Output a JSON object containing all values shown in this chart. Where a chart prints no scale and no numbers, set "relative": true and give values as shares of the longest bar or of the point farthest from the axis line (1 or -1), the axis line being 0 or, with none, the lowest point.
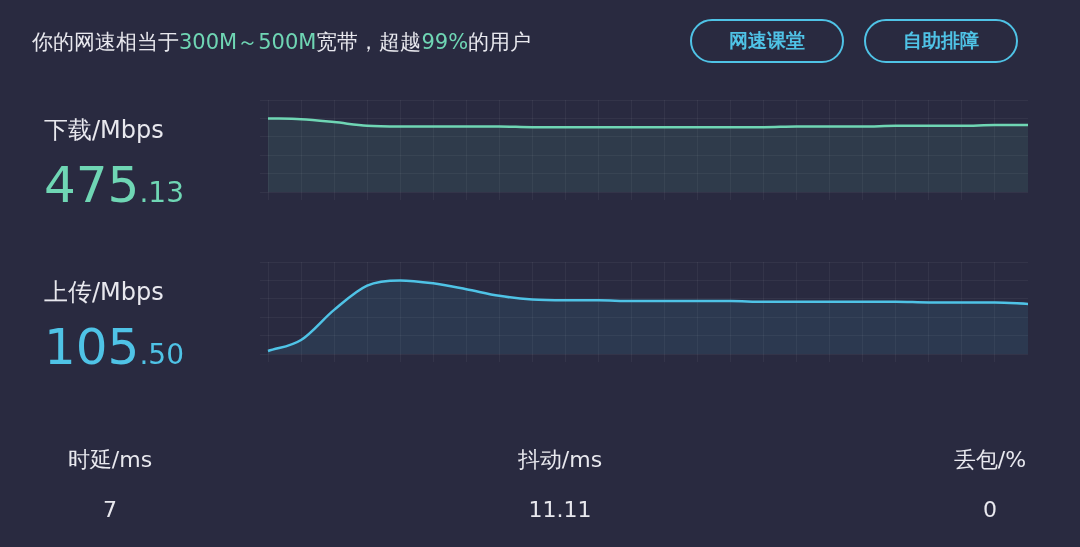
{
  "chart_data": [
    {
      "type": "other",
      "title": "你的网速相当于300M～500M宽带，超越99%的用户",
      "annotations": [
        "网速课堂",
        "自助排障"
      ]
    },
    {
      "type": "area",
      "title": "下载/Mbps",
      "annotations": [
        "475.13"
      ],
      "relative": true,
      "grid": true,
      "categories": [
        null,
        null,
        null,
        null,
        null,
        null,
        null,
        null,
        null,
        null,
        null,
        null,
        null,
        null,
        null,
        null,
        null,
        null,
        null,
        null,
        null,
        null,
        null,
        null
      ],
      "series": [
        {
          "color": "#6fd6b4",
          "values": [
            1,
            0.99,
            0.95,
            0.9,
            0.89,
            0.89,
            0.89,
            0.89,
            0.88,
            0.88,
            0.88,
            0.88,
            0.88,
            0.88,
            0.88,
            0.88,
            0.89,
            0.89,
            0.89,
            0.9,
            0.9,
            0.9,
            0.91,
            0.91
          ]
        }
      ]
    },
    {
      "type": "area",
      "title": "上传/Mbps",
      "annotations": [
        "105.50"
      ],
      "relative": true,
      "grid": true,
      "categories": [
        null,
        null,
        null,
        null,
        null,
        null,
        null,
        null,
        null,
        null,
        null,
        null,
        null,
        null,
        null,
        null,
        null,
        null,
        null,
        null,
        null,
        null,
        null,
        null
      ],
      "series": [
        {
          "color": "#4fc3e6",
          "values": [
            0.04,
            0.19,
            0.6,
            0.93,
            1,
            0.96,
            0.88,
            0.79,
            0.74,
            0.73,
            0.73,
            0.72,
            0.72,
            0.72,
            0.72,
            0.71,
            0.71,
            0.71,
            0.71,
            0.71,
            0.7,
            0.7,
            0.7,
            0.68
          ]
        }
      ]
    },
    {
      "type": "other",
      "annotations": [
        "时延/ms",
        "7",
        "抖动/ms",
        "11.11",
        "丢包/%",
        "0"
      ]
    }
  ]
}
